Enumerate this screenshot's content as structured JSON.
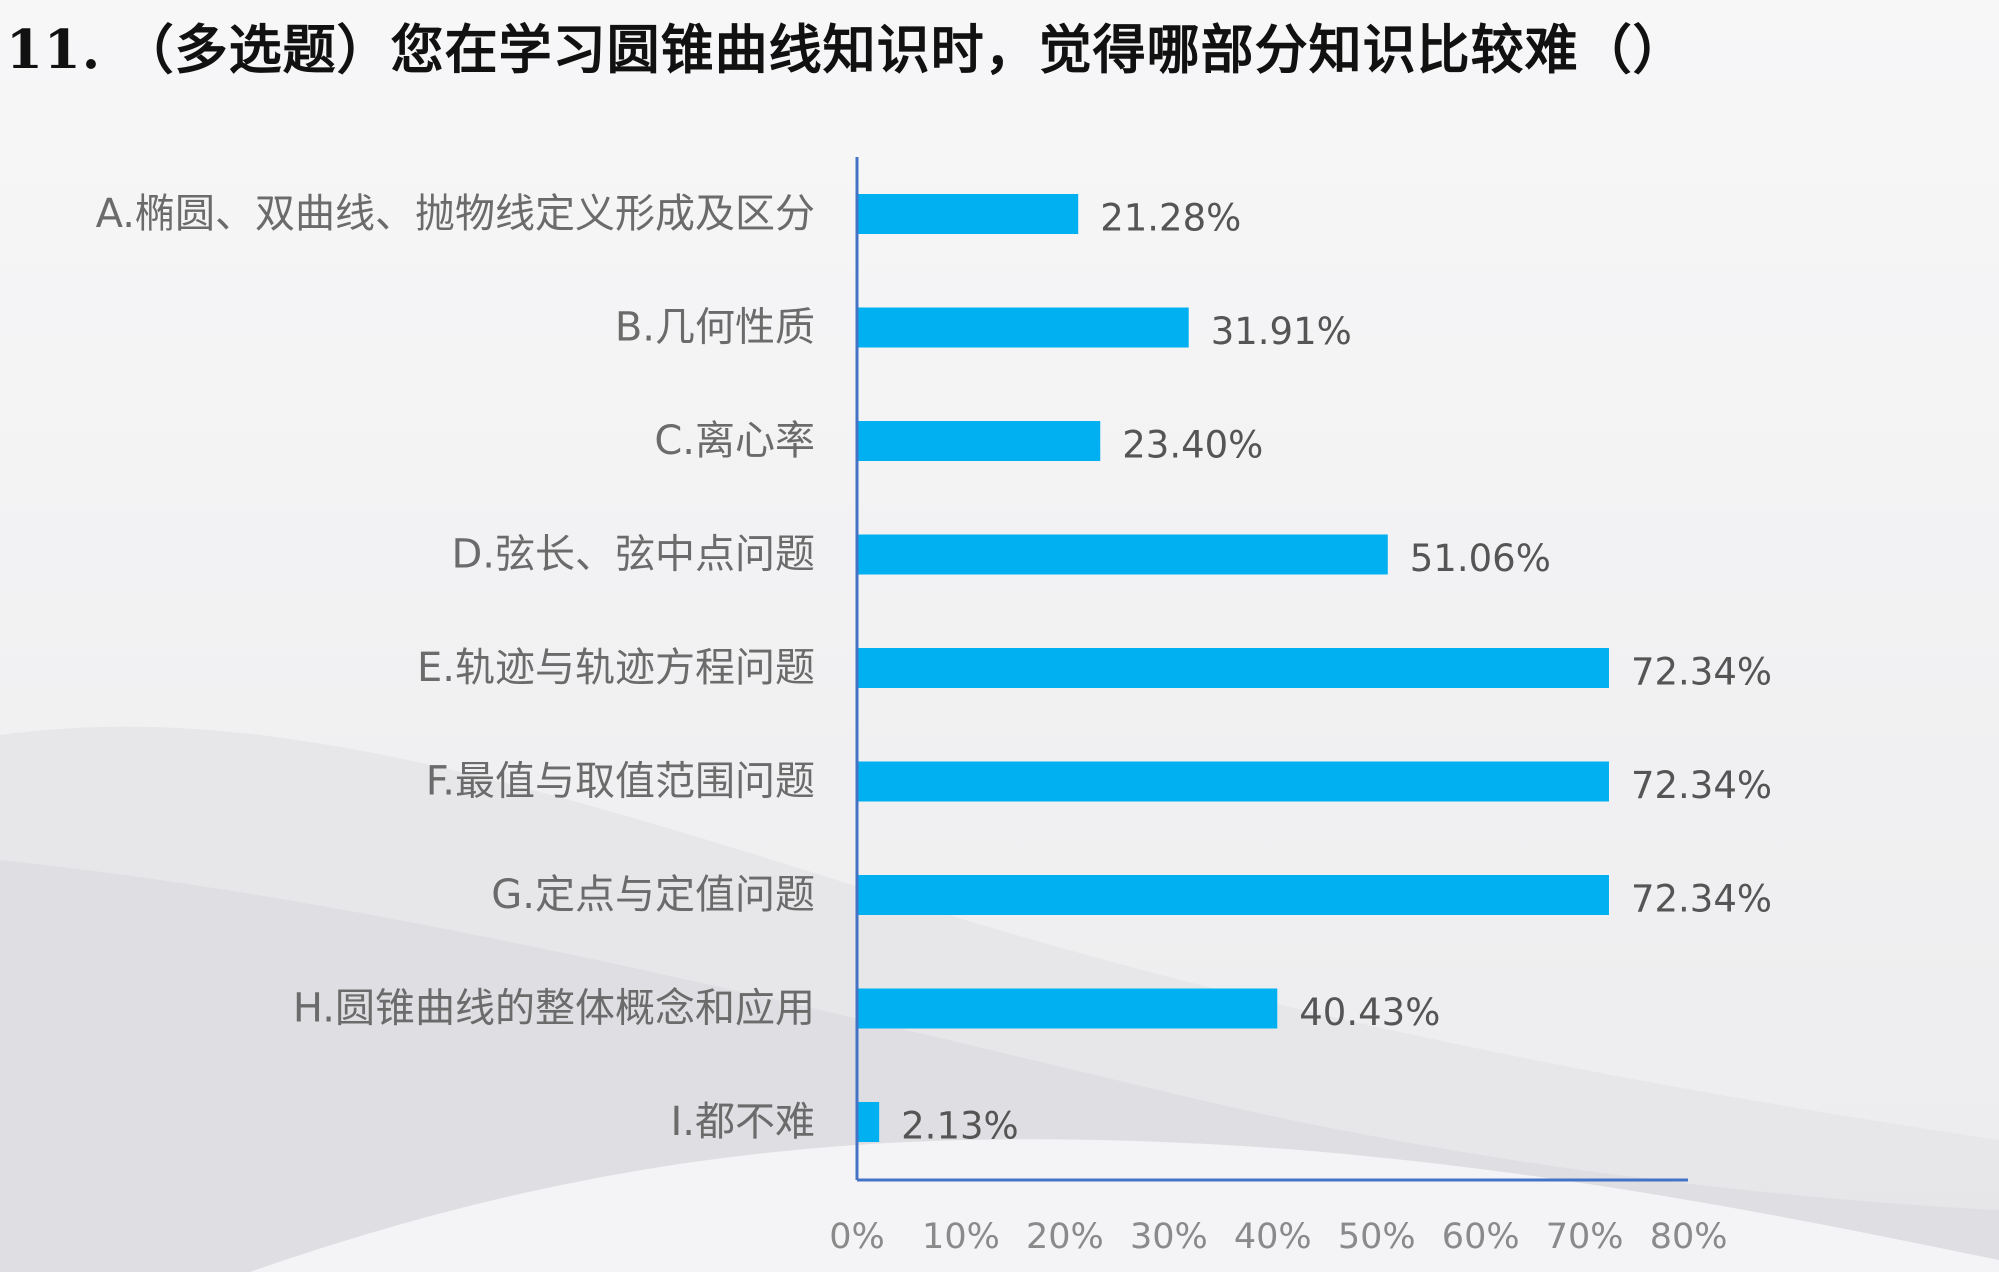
{
  "title": "11. （多选题）您在学习圆锥曲线知识时，觉得哪部分知识比较难（）",
  "colors": {
    "bar": "#00b0f0",
    "axis": "#4472c4"
  },
  "chart_data": {
    "type": "bar",
    "orientation": "horizontal",
    "categories": [
      "A.椭圆、双曲线、抛物线定义形成及区分",
      "B.几何性质",
      "C.离心率",
      "D.弦长、弦中点问题",
      "E.轨迹与轨迹方程问题",
      "F.最值与取值范围问题",
      "G.定点与定值问题",
      "H.圆锥曲线的整体概念和应用",
      "I.都不难"
    ],
    "values": [
      21.28,
      31.91,
      23.4,
      51.06,
      72.34,
      72.34,
      72.34,
      40.43,
      2.13
    ],
    "data_labels": [
      "21.28%",
      "31.91%",
      "23.40%",
      "51.06%",
      "72.34%",
      "72.34%",
      "72.34%",
      "40.43%",
      "2.13%"
    ],
    "xlim": [
      0,
      80
    ],
    "xticks": [
      0,
      10,
      20,
      30,
      40,
      50,
      60,
      70,
      80
    ],
    "xtick_labels": [
      "0%",
      "10%",
      "20%",
      "30%",
      "40%",
      "50%",
      "60%",
      "70%",
      "80%"
    ],
    "grid": false,
    "legend": "none"
  }
}
